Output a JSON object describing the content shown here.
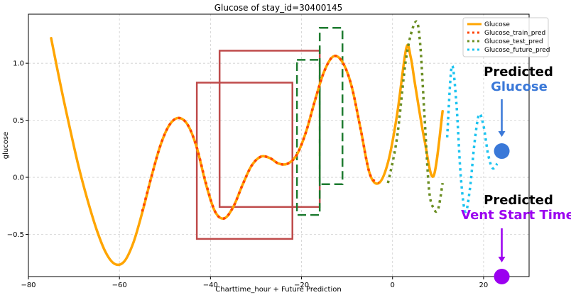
{
  "chart_data": {
    "type": "line",
    "title": "Glucose of stay_id=30400145",
    "xlabel": "Charttime_hour + Future Prediction",
    "ylabel": "glucose",
    "xlim": [
      -80,
      30
    ],
    "ylim": [
      -0.87,
      1.43
    ],
    "grid": true,
    "xticks": [
      -80,
      -60,
      -40,
      -20,
      0,
      20
    ],
    "yticks": [
      -0.5,
      0.0,
      0.5,
      1.0
    ],
    "xtick_labels": [
      "−80",
      "−60",
      "−40",
      "−20",
      "0",
      "20"
    ],
    "ytick_labels": [
      "−0.5",
      "0.0",
      "0.5",
      "1.0"
    ],
    "legend_position": "top-right",
    "series": [
      {
        "name": "Glucose",
        "color": "#FFA500",
        "style": "solid",
        "x": [
          -75,
          -73,
          -71,
          -69,
          -67,
          -65,
          -63,
          -61,
          -59,
          -57,
          -55,
          -53,
          -51,
          -49,
          -47,
          -45,
          -43,
          -41,
          -39,
          -37,
          -35,
          -33,
          -31,
          -29,
          -27,
          -25,
          -23,
          -21,
          -19,
          -17,
          -15,
          -13,
          -11,
          -9,
          -7,
          -5,
          -3,
          -1,
          1,
          3,
          4,
          5,
          7,
          9,
          11
        ],
        "y": [
          1.22,
          0.82,
          0.45,
          0.1,
          -0.2,
          -0.46,
          -0.66,
          -0.76,
          -0.74,
          -0.58,
          -0.31,
          0.0,
          0.28,
          0.46,
          0.52,
          0.46,
          0.26,
          -0.06,
          -0.3,
          -0.36,
          -0.26,
          -0.07,
          0.1,
          0.18,
          0.17,
          0.12,
          0.12,
          0.2,
          0.4,
          0.68,
          0.93,
          1.06,
          1.01,
          0.8,
          0.42,
          0.03,
          -0.05,
          0.13,
          0.55,
          1.13,
          1.05,
          0.8,
          0.33,
          0.01,
          0.58
        ]
      },
      {
        "name": "Glucose_train_pred",
        "color": "#FF4500",
        "style": "dotted",
        "x": [
          -55,
          -53,
          -51,
          -49,
          -47,
          -45,
          -43,
          -41,
          -39,
          -37,
          -35,
          -33,
          -31,
          -29,
          -27,
          -25,
          -23,
          -21,
          -19,
          -17,
          -15,
          -13,
          -11,
          -9,
          -7,
          -5,
          -3
        ],
        "y": [
          -0.3,
          0.0,
          0.28,
          0.46,
          0.52,
          0.46,
          0.26,
          -0.05,
          -0.3,
          -0.36,
          -0.26,
          -0.07,
          0.1,
          0.18,
          0.17,
          0.12,
          0.12,
          0.2,
          0.4,
          0.68,
          0.93,
          1.06,
          1.01,
          0.8,
          0.42,
          0.03,
          -0.05
        ]
      },
      {
        "name": "Glucose_test_pred",
        "color": "#6B8E23",
        "style": "dotted",
        "x": [
          -1,
          1,
          3,
          5,
          6,
          7,
          8,
          9,
          10,
          11
        ],
        "y": [
          -0.05,
          0.35,
          1.05,
          1.36,
          1.2,
          0.55,
          -0.1,
          -0.27,
          -0.28,
          -0.05
        ]
      },
      {
        "name": "Glucose_future_pred",
        "color": "#1EC4F0",
        "style": "dotted",
        "x": [
          12,
          13,
          14,
          15,
          16,
          17,
          18,
          19,
          20,
          21,
          22,
          23
        ],
        "y": [
          0.35,
          0.97,
          0.66,
          0.0,
          -0.3,
          -0.1,
          0.3,
          0.55,
          0.45,
          0.2,
          0.08,
          0.12
        ]
      }
    ],
    "annotation_boxes": [
      {
        "label": "red box 1",
        "x0": -38,
        "x1": -16,
        "y0": -0.26,
        "y1": 1.11,
        "color": "#BF4B4B",
        "style": "solid"
      },
      {
        "label": "red box 2",
        "x0": -43,
        "x1": -22,
        "y0": -0.54,
        "y1": 0.83,
        "color": "#BF4B4B",
        "style": "solid"
      },
      {
        "label": "green box 1",
        "x0": -16,
        "x1": -11,
        "y0": -0.06,
        "y1": 1.31,
        "color": "#1E7B30",
        "style": "dashed"
      },
      {
        "label": "green box 2",
        "x0": -21,
        "x1": -16,
        "y0": -0.33,
        "y1": 1.03,
        "color": "#1E7B30",
        "style": "dashed"
      }
    ],
    "markers": [
      {
        "name": "predicted glucose marker",
        "x": 24,
        "y": 0.23,
        "color": "#3A78D8"
      },
      {
        "name": "predicted vent start marker",
        "x": 24,
        "y": -0.87,
        "color": "#9B00F0"
      }
    ]
  },
  "annotations": {
    "glucose": {
      "line1": "Predicted",
      "line2": "Glucose",
      "line1_color": "#000000",
      "line2_color": "#3A78D8"
    },
    "vent": {
      "line1": "Predicted",
      "line2": "Vent Start Time",
      "line1_color": "#000000",
      "line2_color": "#9B00F0"
    }
  }
}
